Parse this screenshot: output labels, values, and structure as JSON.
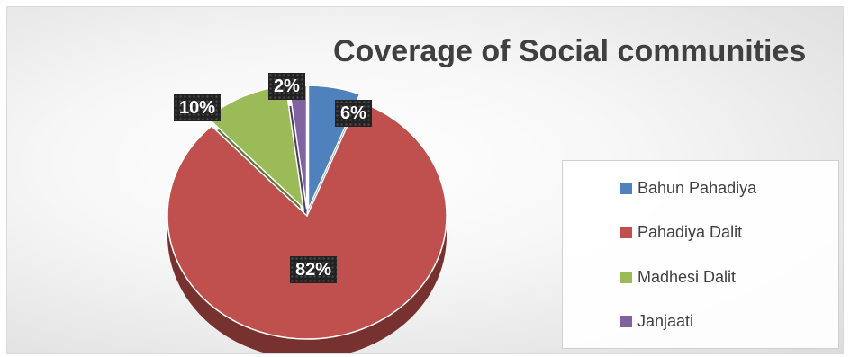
{
  "chart_data": {
    "type": "pie",
    "title": "Coverage of Social communities",
    "categories": [
      "Bahun Pahadiya",
      "Pahadiya Dalit",
      "Madhesi Dalit",
      "Janjaati"
    ],
    "values": [
      6,
      82,
      10,
      2
    ],
    "value_labels": [
      "6%",
      "82%",
      "10%",
      "2%"
    ],
    "colors": [
      "#4f81bd",
      "#c0504d",
      "#9bbb59",
      "#8064a2"
    ],
    "legend_position": "right",
    "style": "3d-exploded"
  }
}
